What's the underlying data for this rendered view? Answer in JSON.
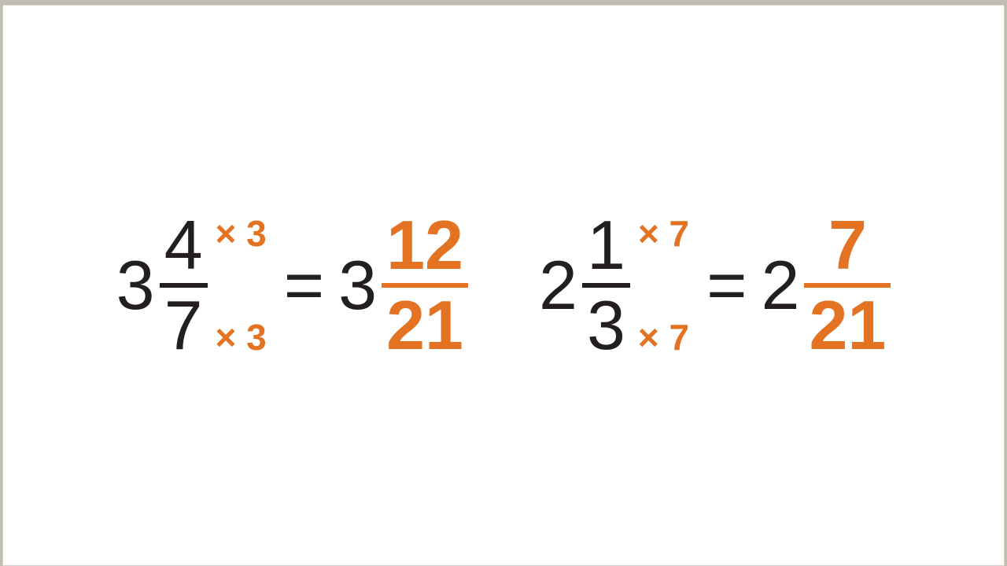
{
  "type": "math-equation-infographic",
  "background_color": "#c3bcb2",
  "panel": {
    "background": "#ffffff",
    "border_color": "#d4cec6"
  },
  "colors": {
    "base_text": "#231f20",
    "accent": "#e37222",
    "fraction_bar": "#231f20",
    "result_bar": "#e37222"
  },
  "typography": {
    "whole_fontsize": 88,
    "fraction_fontsize": 88,
    "multiplier_fontsize": 46,
    "result_bold": true,
    "multiplier_weight": 600
  },
  "layout": {
    "gap_between_equations": 90
  },
  "equations": [
    {
      "left": {
        "whole": "3",
        "numerator": "4",
        "denominator": "7",
        "mult_top": "× 3",
        "mult_bottom": "× 3"
      },
      "equals": "=",
      "right": {
        "whole": "3",
        "numerator": "12",
        "denominator": "21"
      }
    },
    {
      "left": {
        "whole": "2",
        "numerator": "1",
        "denominator": "3",
        "mult_top": "× 7",
        "mult_bottom": "× 7"
      },
      "equals": "=",
      "right": {
        "whole": "2",
        "numerator": "7",
        "denominator": "21"
      }
    }
  ]
}
